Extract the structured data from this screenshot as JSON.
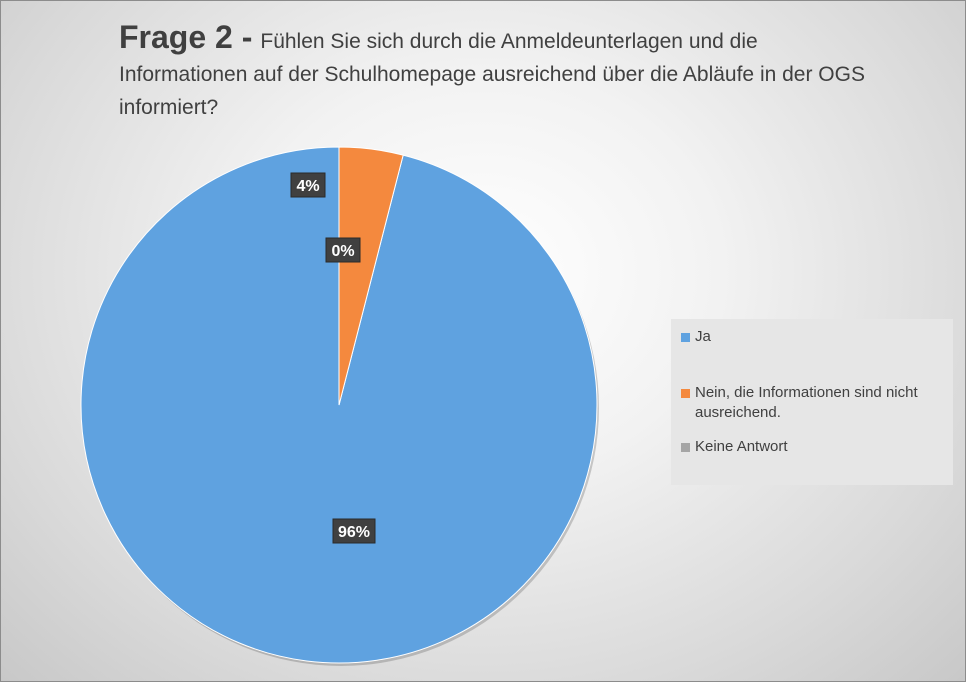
{
  "chart_data": {
    "type": "pie",
    "title_prefix": "Frage 2 -",
    "title": "Fühlen Sie sich durch die Anmeldeunterlagen und die Informationen auf der Schulhomepage ausreichend über die Abläufe in der OGS informiert?",
    "categories": [
      "Ja",
      "Nein, die Informationen sind nicht ausreichend.",
      "Keine Antwort"
    ],
    "values": [
      96,
      4,
      0
    ],
    "labels": [
      "96%",
      "4%",
      "0%"
    ],
    "colors": [
      "#5fa2e0",
      "#f4893e",
      "#a5a5a5"
    ],
    "legend_position": "right"
  }
}
